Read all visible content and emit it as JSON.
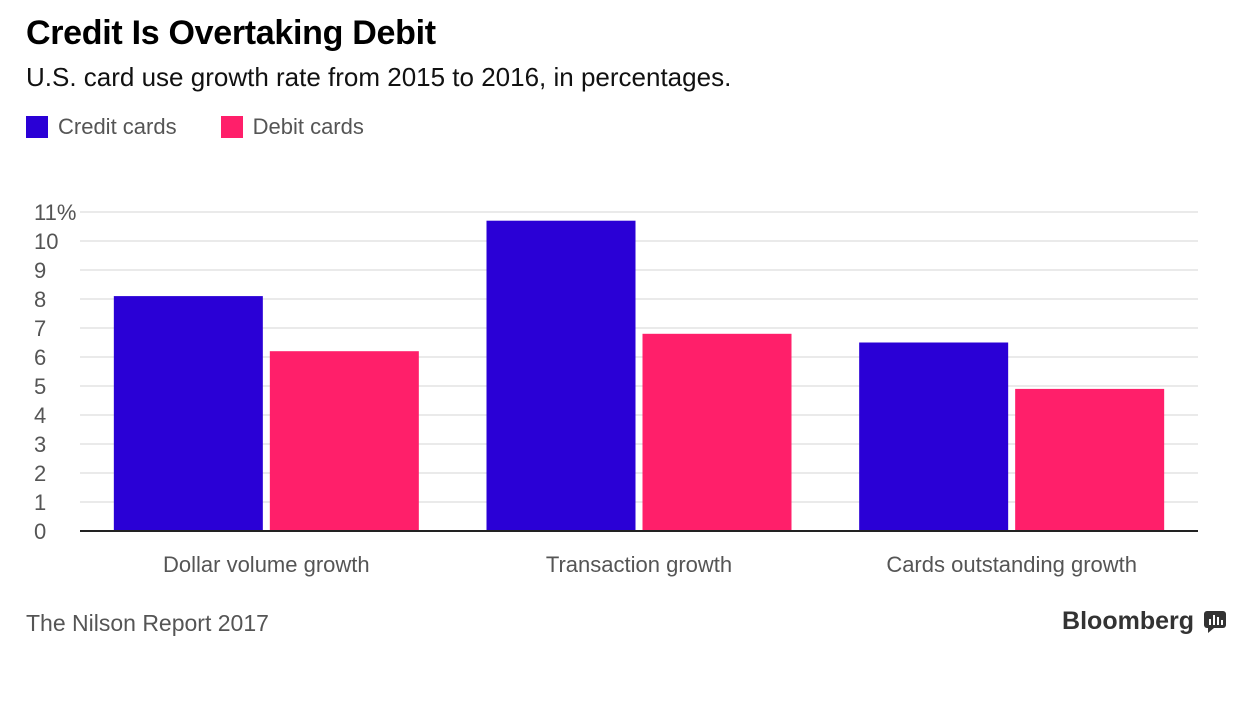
{
  "title": "Credit Is Overtaking Debit",
  "subtitle": "U.S. card use growth rate from 2015 to 2016, in percentages.",
  "source": "The Nilson Report 2017",
  "brand": "Bloomberg",
  "colors": {
    "credit": "#2a00d6",
    "debit": "#ff1f6a",
    "grid": "#e3e3e3",
    "axis": "#222222",
    "tick_text": "#555555"
  },
  "chart_data": {
    "type": "bar",
    "categories": [
      "Dollar volume growth",
      "Transaction growth",
      "Cards outstanding growth"
    ],
    "series": [
      {
        "name": "Credit cards",
        "values": [
          8.1,
          10.7,
          6.5
        ]
      },
      {
        "name": "Debit cards",
        "values": [
          6.2,
          6.8,
          4.9
        ]
      }
    ],
    "ylim": [
      0,
      11
    ],
    "yticks": [
      0,
      1,
      2,
      3,
      4,
      5,
      6,
      7,
      8,
      9,
      10,
      11
    ],
    "ytick_labels": [
      "0",
      "1",
      "2",
      "3",
      "4",
      "5",
      "6",
      "7",
      "8",
      "9",
      "10",
      "11%"
    ],
    "grid": true,
    "legend_position": "top-left"
  }
}
